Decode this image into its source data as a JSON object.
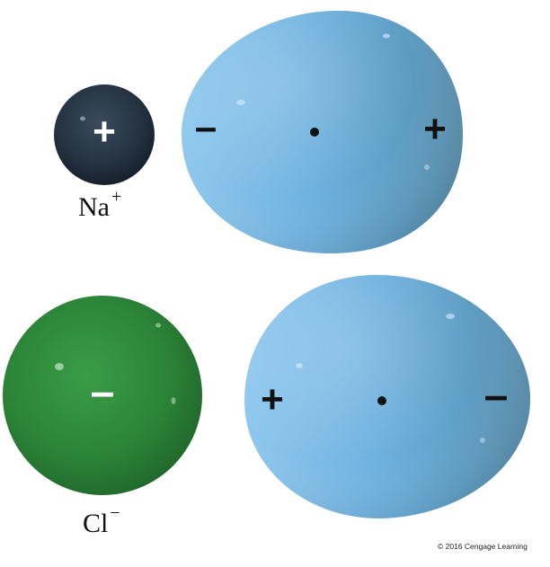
{
  "sodium_ion": {
    "charge_symbol": "+",
    "label_base": "Na",
    "label_charge": "+",
    "color": "#1e2a36"
  },
  "chloride_ion": {
    "charge_symbol": "–",
    "label_base": "Cl",
    "label_charge": "−",
    "color": "#2e8a3a"
  },
  "water_molecule_top": {
    "left_pole": "–",
    "right_pole": "+",
    "color": "#6fb0d8"
  },
  "water_molecule_bottom": {
    "left_pole": "+",
    "right_pole": "–",
    "color": "#6fb0d8"
  },
  "credit": "© 2016 Cengage Learning"
}
